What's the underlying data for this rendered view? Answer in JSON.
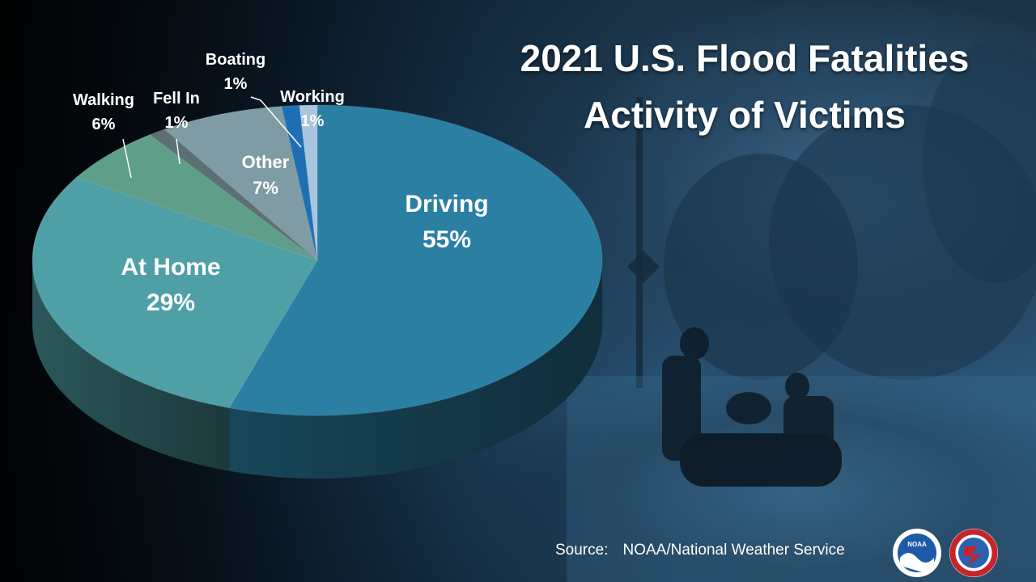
{
  "chart_data": {
    "type": "pie",
    "title": "2021 U.S. Flood Fatalities",
    "subtitle": "Activity of Victims",
    "slices": [
      {
        "label": "Driving",
        "value": 55,
        "value_label": "55%",
        "color": "#2b7fa3"
      },
      {
        "label": "At Home",
        "value": 29,
        "value_label": "29%",
        "color": "#4fa0a6"
      },
      {
        "label": "Walking",
        "value": 6,
        "value_label": "6%",
        "color": "#5f9e88"
      },
      {
        "label": "Fell In",
        "value": 1,
        "value_label": "1%",
        "color": "#5b6f74"
      },
      {
        "label": "Other",
        "value": 7,
        "value_label": "7%",
        "color": "#7f9ba3"
      },
      {
        "label": "Boating",
        "value": 1,
        "value_label": "1%",
        "color": "#1f6fb5"
      },
      {
        "label": "Working",
        "value": 1,
        "value_label": "1%",
        "color": "#a9c6de"
      }
    ]
  },
  "source": {
    "label": "Source:",
    "text": "NOAA/National Weather Service"
  },
  "logos": {
    "noaa": {
      "text": "NOAA",
      "icon": "noaa-logo-icon",
      "color": "#1e5aa8"
    },
    "nws": {
      "text": "NATIONAL WEATHER SERVICE",
      "icon": "nws-logo-icon",
      "color": "#c8222b"
    }
  }
}
